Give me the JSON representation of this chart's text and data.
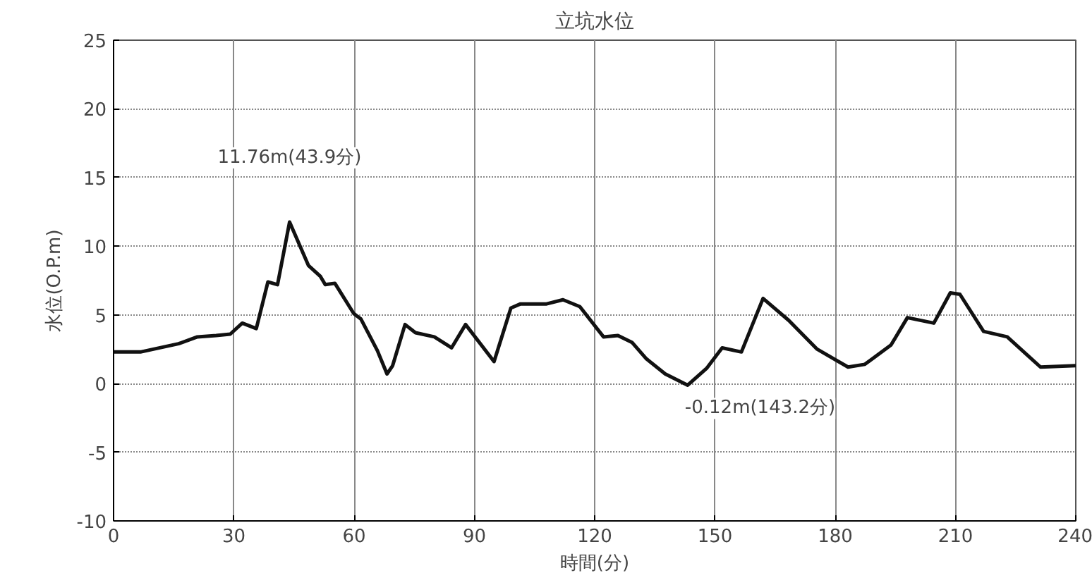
{
  "chart_data": {
    "type": "line",
    "title": "立坑水位",
    "xlabel": "時間(分)",
    "ylabel": "水位(O.P.m)",
    "xlim": [
      0,
      240
    ],
    "xticks": [
      0,
      30,
      60,
      90,
      120,
      150,
      180,
      210,
      240
    ],
    "ylim": [
      -10,
      25
    ],
    "yticks": [
      -10,
      -5,
      0,
      5,
      10,
      15,
      20,
      25
    ],
    "grid": true,
    "marker": "none",
    "line_style": "solid",
    "series": [
      {
        "color": "#111111",
        "x": [
          0,
          6.7,
          16.2,
          20.9,
          25.6,
          29.1,
          32.1,
          35.6,
          38.5,
          40.9,
          43.9,
          48.6,
          51.6,
          52.8,
          55.2,
          59.9,
          61.7,
          65.8,
          68.2,
          69.6,
          72.7,
          75.3,
          80.0,
          84.3,
          87.8,
          94.9,
          99.1,
          101.5,
          108.0,
          112.1,
          116.3,
          122.2,
          125.8,
          129.3,
          132.9,
          137.6,
          143.2,
          147.9,
          151.8,
          156.6,
          162.0,
          168.4,
          175.5,
          183.2,
          187.4,
          193.9,
          198.0,
          204.6,
          208.7,
          211.1,
          217.0,
          222.9,
          231.2,
          240
        ],
        "values": [
          2.3,
          2.3,
          2.9,
          3.4,
          3.5,
          3.6,
          4.4,
          4.0,
          7.4,
          7.2,
          11.76,
          8.6,
          7.8,
          7.2,
          7.3,
          5.1,
          4.7,
          2.4,
          0.7,
          1.3,
          4.3,
          3.7,
          3.4,
          2.6,
          4.3,
          1.6,
          5.5,
          5.8,
          5.8,
          6.1,
          5.6,
          3.4,
          3.5,
          3.0,
          1.8,
          0.7,
          -0.12,
          1.1,
          2.6,
          2.3,
          6.2,
          4.6,
          2.5,
          1.2,
          1.4,
          2.8,
          4.8,
          4.4,
          6.6,
          6.5,
          3.8,
          3.4,
          1.2,
          1.3
        ]
      }
    ],
    "annotations": [
      {
        "text": "11.76m(43.9分)",
        "x": 43.9,
        "y": 11.76
      },
      {
        "text": "-0.12m(143.2分)",
        "x": 143.2,
        "y": -0.12
      }
    ]
  }
}
